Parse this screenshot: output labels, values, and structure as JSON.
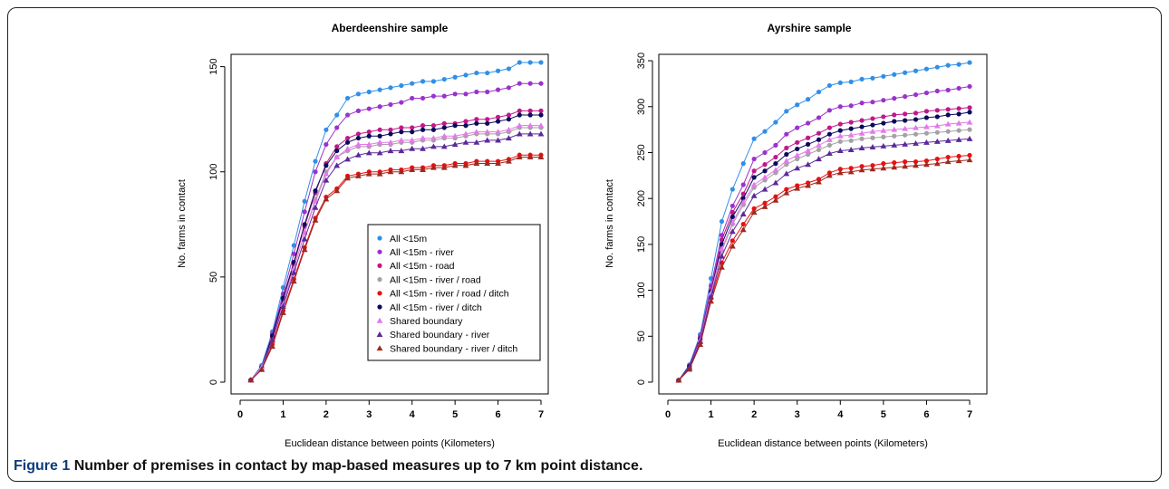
{
  "caption": {
    "label": "Figure 1",
    "text": "Number of premises in contact by map-based measures up to 7 km point distance."
  },
  "legend_entries": [
    {
      "label": "All <15m",
      "color": "#2f8fe8",
      "marker": "circle"
    },
    {
      "label": "All <15m - river",
      "color": "#9a32cd",
      "marker": "circle"
    },
    {
      "label": "All <15m - road",
      "color": "#c0188a",
      "marker": "circle"
    },
    {
      "label": "All <15m - river / road",
      "color": "#a3a3a3",
      "marker": "circle"
    },
    {
      "label": "All <15m - river / road / ditch",
      "color": "#e81010",
      "marker": "circle"
    },
    {
      "label": "All <15m - river / ditch",
      "color": "#0a0a5c",
      "marker": "circle"
    },
    {
      "label": "Shared boundary",
      "color": "#e27ae8",
      "marker": "triangle"
    },
    {
      "label": "Shared boundary - river",
      "color": "#5a2a9a",
      "marker": "triangle"
    },
    {
      "label": "Shared boundary - river / ditch",
      "color": "#a0281e",
      "marker": "triangle"
    }
  ],
  "chart_data": [
    {
      "type": "line",
      "title": "Aberdeenshire sample",
      "xlabel": "Euclidean distance between points (Kilometers)",
      "ylabel": "No. farms in contact",
      "xlim": [
        0,
        7
      ],
      "ylim": [
        0,
        155
      ],
      "xticks": [
        0,
        1,
        2,
        3,
        4,
        5,
        6,
        7
      ],
      "yticks": [
        0,
        50,
        100,
        150
      ],
      "x": [
        0.25,
        0.5,
        0.75,
        1.0,
        1.25,
        1.5,
        1.75,
        2.0,
        2.25,
        2.5,
        2.75,
        3.0,
        3.25,
        3.5,
        3.75,
        4.0,
        4.25,
        4.5,
        4.75,
        5.0,
        5.25,
        5.5,
        5.75,
        6.0,
        6.25,
        6.5,
        6.75,
        7.0
      ],
      "legend_position": "center-right",
      "series": [
        {
          "name": "All <15m",
          "values": [
            1,
            8,
            24,
            45,
            65,
            86,
            105,
            120,
            127,
            135,
            137,
            138,
            139,
            140,
            141,
            142,
            143,
            143,
            144,
            145,
            146,
            147,
            147,
            148,
            149,
            152,
            152,
            152
          ]
        },
        {
          "name": "All <15m - river",
          "values": [
            1,
            7,
            23,
            42,
            61,
            81,
            100,
            113,
            121,
            127,
            129,
            130,
            131,
            132,
            133,
            135,
            135,
            136,
            136,
            137,
            137,
            138,
            138,
            139,
            140,
            142,
            142,
            142
          ]
        },
        {
          "name": "All <15m - road",
          "values": [
            1,
            7,
            21,
            39,
            56,
            74,
            90,
            104,
            112,
            116,
            118,
            119,
            120,
            120,
            121,
            121,
            122,
            122,
            123,
            123,
            124,
            125,
            125,
            126,
            127,
            129,
            129,
            129
          ]
        },
        {
          "name": "All <15m - river / road",
          "values": [
            1,
            7,
            20,
            37,
            54,
            71,
            87,
            100,
            107,
            110,
            112,
            112,
            113,
            113,
            114,
            114,
            115,
            115,
            116,
            116,
            117,
            118,
            118,
            118,
            119,
            121,
            121,
            121
          ]
        },
        {
          "name": "All <15m - river / road / ditch",
          "values": [
            1,
            6,
            18,
            34,
            49,
            64,
            78,
            88,
            92,
            98,
            99,
            100,
            100,
            101,
            101,
            102,
            102,
            103,
            103,
            104,
            104,
            105,
            105,
            105,
            106,
            108,
            108,
            108
          ]
        },
        {
          "name": "All <15m - river / ditch",
          "values": [
            1,
            7,
            22,
            40,
            57,
            75,
            91,
            103,
            110,
            114,
            116,
            117,
            117,
            118,
            119,
            119,
            120,
            120,
            121,
            122,
            122,
            123,
            123,
            124,
            125,
            127,
            127,
            127
          ]
        },
        {
          "name": "Shared boundary",
          "values": [
            1,
            7,
            20,
            37,
            54,
            71,
            86,
            99,
            107,
            111,
            113,
            113,
            114,
            114,
            115,
            115,
            116,
            116,
            117,
            117,
            118,
            119,
            119,
            119,
            120,
            122,
            122,
            122
          ]
        },
        {
          "name": "Shared boundary - river",
          "values": [
            1,
            6,
            20,
            36,
            52,
            68,
            83,
            96,
            103,
            106,
            108,
            109,
            109,
            110,
            110,
            111,
            111,
            112,
            112,
            113,
            114,
            114,
            115,
            115,
            116,
            118,
            118,
            118
          ]
        },
        {
          "name": "Shared boundary - river / ditch",
          "values": [
            1,
            6,
            17,
            33,
            48,
            63,
            77,
            87,
            91,
            97,
            98,
            99,
            99,
            100,
            100,
            101,
            101,
            102,
            102,
            103,
            103,
            104,
            104,
            104,
            105,
            107,
            107,
            107
          ]
        }
      ]
    },
    {
      "type": "line",
      "title": "Ayrshire sample",
      "xlabel": "Euclidean distance between points (Kilometers)",
      "ylabel": "No. farms in contact",
      "xlim": [
        0,
        7
      ],
      "ylim": [
        0,
        355
      ],
      "xticks": [
        0,
        1,
        2,
        3,
        4,
        5,
        6,
        7
      ],
      "yticks": [
        0,
        50,
        100,
        150,
        200,
        250,
        300,
        350
      ],
      "x": [
        0.25,
        0.5,
        0.75,
        1.0,
        1.25,
        1.5,
        1.75,
        2.0,
        2.25,
        2.5,
        2.75,
        3.0,
        3.25,
        3.5,
        3.75,
        4.0,
        4.25,
        4.5,
        4.75,
        5.0,
        5.25,
        5.5,
        5.75,
        6.0,
        6.25,
        6.5,
        6.75,
        7.0
      ],
      "series": [
        {
          "name": "All <15m",
          "values": [
            2,
            19,
            52,
            113,
            175,
            210,
            238,
            265,
            273,
            283,
            295,
            302,
            308,
            316,
            323,
            326,
            327,
            330,
            331,
            333,
            335,
            337,
            339,
            341,
            343,
            345,
            346,
            348
          ]
        },
        {
          "name": "All <15m - river",
          "values": [
            2,
            18,
            50,
            105,
            160,
            192,
            215,
            243,
            250,
            258,
            270,
            277,
            282,
            288,
            296,
            300,
            301,
            304,
            305,
            307,
            309,
            311,
            313,
            315,
            317,
            318,
            320,
            322
          ]
        },
        {
          "name": "All <15m - road",
          "values": [
            2,
            17,
            48,
            100,
            155,
            185,
            205,
            230,
            237,
            245,
            255,
            261,
            266,
            271,
            277,
            281,
            283,
            285,
            287,
            289,
            291,
            292,
            293,
            295,
            296,
            297,
            298,
            299
          ]
        },
        {
          "name": "All <15m - river / road",
          "values": [
            2,
            16,
            46,
            96,
            143,
            172,
            193,
            212,
            220,
            228,
            237,
            243,
            248,
            253,
            258,
            262,
            263,
            265,
            266,
            267,
            268,
            269,
            270,
            271,
            272,
            273,
            274,
            275
          ]
        },
        {
          "name": "All <15m - river / road / ditch",
          "values": [
            2,
            15,
            43,
            91,
            130,
            154,
            172,
            189,
            195,
            202,
            210,
            214,
            217,
            221,
            228,
            232,
            233,
            235,
            236,
            238,
            239,
            240,
            240,
            241,
            243,
            245,
            246,
            247
          ]
        },
        {
          "name": "All <15m - river / ditch",
          "values": [
            2,
            17,
            47,
            98,
            150,
            180,
            200,
            223,
            230,
            238,
            248,
            254,
            259,
            264,
            270,
            274,
            276,
            278,
            280,
            282,
            284,
            285,
            286,
            288,
            289,
            291,
            292,
            294
          ]
        },
        {
          "name": "Shared boundary",
          "values": [
            2,
            16,
            46,
            97,
            145,
            174,
            196,
            215,
            223,
            231,
            241,
            247,
            252,
            258,
            264,
            268,
            269,
            271,
            273,
            274,
            275,
            276,
            277,
            278,
            279,
            281,
            282,
            283
          ]
        },
        {
          "name": "Shared boundary - river",
          "values": [
            2,
            16,
            44,
            93,
            137,
            164,
            183,
            203,
            210,
            217,
            227,
            233,
            237,
            243,
            249,
            252,
            253,
            255,
            256,
            257,
            258,
            259,
            260,
            261,
            262,
            263,
            264,
            265
          ]
        },
        {
          "name": "Shared boundary - river / ditch",
          "values": [
            2,
            14,
            41,
            88,
            125,
            148,
            166,
            185,
            191,
            198,
            206,
            211,
            214,
            218,
            225,
            228,
            229,
            231,
            232,
            233,
            234,
            235,
            236,
            237,
            238,
            240,
            241,
            242
          ]
        }
      ]
    }
  ]
}
